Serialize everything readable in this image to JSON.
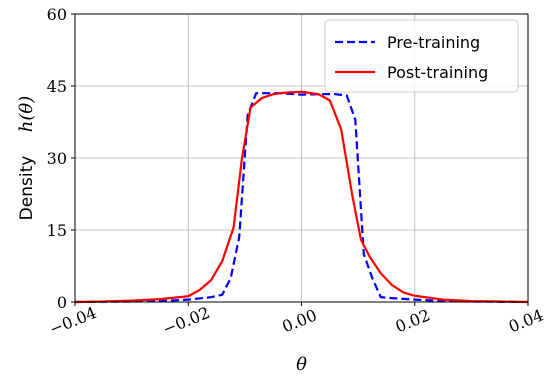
{
  "chart_data": {
    "type": "line",
    "xlabel": "θ",
    "ylabel_text": "Density",
    "ylabel_math": "h(θ)",
    "xlim": [
      -0.04,
      0.04
    ],
    "ylim": [
      0,
      60
    ],
    "xticks": [
      -0.04,
      -0.02,
      0.0,
      0.02,
      0.04
    ],
    "xtick_labels": [
      "−0.04",
      "−0.02",
      "0.00",
      "0.02",
      "0.04"
    ],
    "yticks": [
      0,
      15,
      30,
      45,
      60
    ],
    "ytick_labels": [
      "0",
      "15",
      "30",
      "45",
      "60"
    ],
    "grid": true,
    "legend_position": "top-right",
    "series": [
      {
        "name": "Pre-training",
        "style": "dashed",
        "color": "#0000ff",
        "x": [
          -0.04,
          -0.03,
          -0.025,
          -0.02,
          -0.016,
          -0.014,
          -0.0125,
          -0.011,
          -0.0095,
          -0.008,
          -0.006,
          -0.004,
          0.0,
          0.004,
          0.006,
          0.008,
          0.0095,
          0.011,
          0.0125,
          0.014,
          0.016,
          0.02,
          0.025,
          0.03,
          0.04
        ],
        "y": [
          0.0,
          0.1,
          0.2,
          0.5,
          1.0,
          1.5,
          5.0,
          13.5,
          39.0,
          43.5,
          43.5,
          43.5,
          43.2,
          43.3,
          43.3,
          43.0,
          38.0,
          10.0,
          5.0,
          1.0,
          0.8,
          0.5,
          0.2,
          0.1,
          0.0
        ]
      },
      {
        "name": "Post-training",
        "style": "solid",
        "color": "#ff0000",
        "x": [
          -0.04,
          -0.035,
          -0.03,
          -0.025,
          -0.02,
          -0.018,
          -0.016,
          -0.014,
          -0.012,
          -0.0105,
          -0.009,
          -0.007,
          -0.005,
          -0.003,
          0.0,
          0.003,
          0.005,
          0.007,
          0.009,
          0.0105,
          0.012,
          0.014,
          0.016,
          0.018,
          0.02,
          0.025,
          0.03,
          0.035,
          0.04
        ],
        "y": [
          0.0,
          0.1,
          0.3,
          0.6,
          1.2,
          2.5,
          4.5,
          8.5,
          15.5,
          30.0,
          40.5,
          42.5,
          43.3,
          43.6,
          43.8,
          43.3,
          42.0,
          36.0,
          22.0,
          13.0,
          9.5,
          6.0,
          3.5,
          2.0,
          1.3,
          0.5,
          0.2,
          0.1,
          0.0
        ]
      }
    ]
  }
}
